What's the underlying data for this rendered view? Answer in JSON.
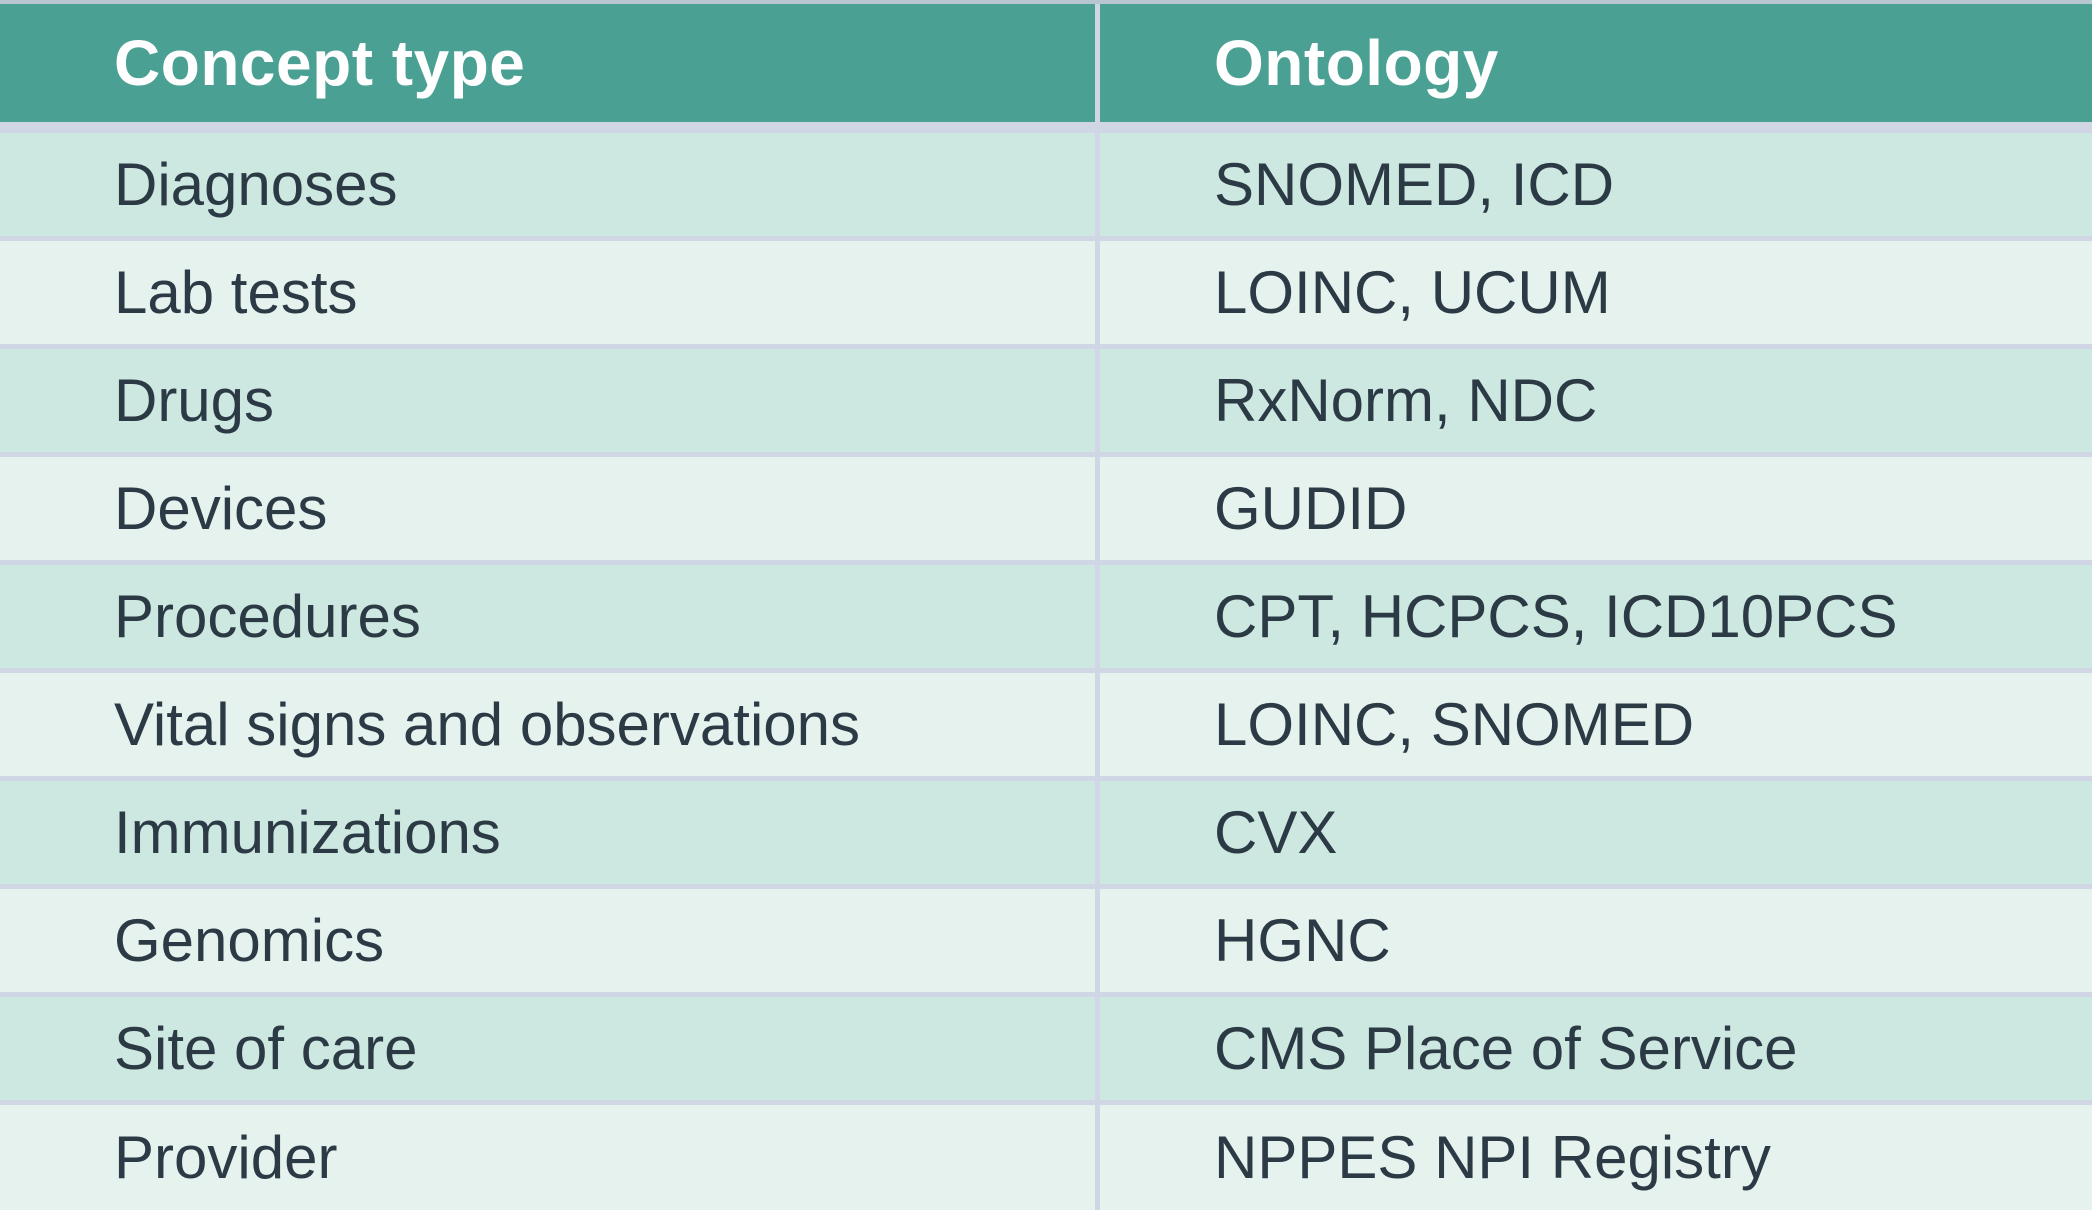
{
  "chart_data": {
    "type": "table",
    "columns": [
      "Concept type",
      "Ontology"
    ],
    "rows": [
      [
        "Diagnoses",
        "SNOMED, ICD"
      ],
      [
        "Lab tests",
        "LOINC, UCUM"
      ],
      [
        "Drugs",
        "RxNorm, NDC"
      ],
      [
        "Devices",
        "GUDID"
      ],
      [
        "Procedures",
        "CPT, HCPCS, ICD10PCS"
      ],
      [
        "Vital signs and observations",
        "LOINC, SNOMED"
      ],
      [
        "Immunizations",
        "CVX"
      ],
      [
        "Genomics",
        "HGNC"
      ],
      [
        "Site of care",
        "CMS Place of Service"
      ],
      [
        "Provider",
        "NPPES NPI Registry"
      ]
    ],
    "title": "",
    "legend": "none",
    "grid": "row and column dividers"
  },
  "colors": {
    "header_bg": "#4aa193",
    "header_text": "#ffffff",
    "row_dark": "#cde8e1",
    "row_light": "#e5f2ee",
    "divider": "#d0d6e3",
    "top_strip": "#b7c6d1",
    "body_text": "#2b3a45"
  }
}
